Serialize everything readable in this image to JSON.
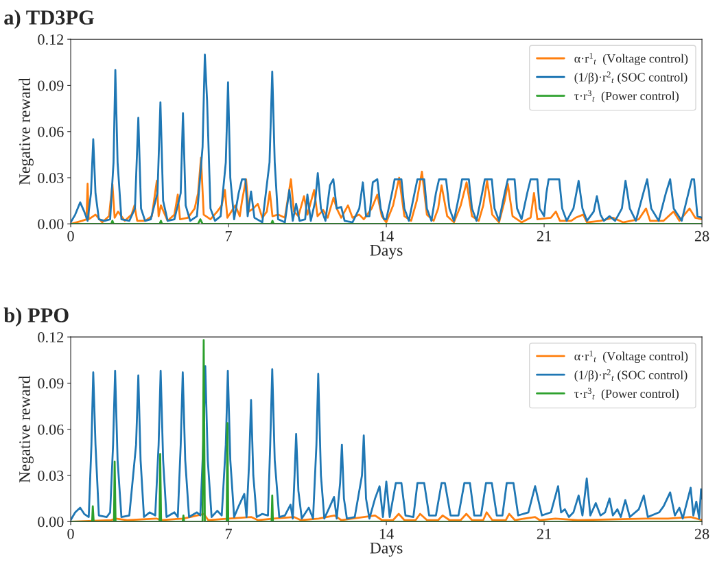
{
  "chart_data": [
    {
      "type": "line",
      "title": "a) TD3PG",
      "xlabel": "Days",
      "ylabel": "Negative reward",
      "xlim": [
        0,
        28
      ],
      "ylim": [
        0,
        0.12
      ],
      "xticks": [
        0,
        7,
        14,
        21,
        28
      ],
      "yticks": [
        {
          "value": 0,
          "label": "0.00"
        },
        {
          "value": 0.03,
          "label": "0.03"
        },
        {
          "value": 0.06,
          "label": "0.06"
        },
        {
          "value": 0.09,
          "label": "0.09"
        },
        {
          "value": 0.12,
          "label": "0.12"
        }
      ],
      "legend": "top right",
      "series": [
        {
          "name": "α·r$^{1}$$_{t}$  (Voltage control)",
          "color": "#ff7f0e",
          "x": [
            0,
            0.5,
            0.7,
            0.75,
            0.8,
            1.1,
            1.4,
            1.7,
            1.85,
            1.95,
            2.1,
            2.4,
            2.7,
            2.83,
            2.95,
            3.3,
            3.6,
            3.82,
            3.9,
            4.0,
            4.3,
            4.6,
            4.75,
            4.85,
            5.2,
            5.5,
            5.65,
            5.78,
            5.9,
            6.2,
            6.5,
            6.7,
            6.84,
            6.95,
            7.3,
            7.5,
            7.6,
            7.78,
            7.9,
            8.1,
            8.3,
            8.5,
            8.7,
            8.83,
            8.95,
            9.2,
            9.5,
            9.77,
            9.9,
            10.1,
            10.35,
            10.5,
            10.8,
            10.95,
            11.2,
            11.4,
            11.66,
            11.8,
            12.0,
            12.3,
            12.5,
            12.8,
            13.0,
            13.35,
            13.6,
            13.8,
            14.0,
            14.3,
            14.57,
            14.8,
            15.1,
            15.35,
            15.58,
            15.8,
            16.1,
            16.3,
            16.45,
            16.7,
            17.0,
            17.3,
            17.56,
            17.8,
            18.1,
            18.3,
            18.47,
            18.7,
            19.0,
            19.25,
            19.39,
            19.6,
            20.0,
            20.4,
            20.55,
            20.7,
            21.3,
            21.52,
            21.7,
            22.2,
            22.4,
            22.73,
            22.9,
            23.5,
            24.05,
            24.5,
            25.2,
            25.52,
            25.7,
            26.3,
            26.74,
            27.0,
            27.45,
            27.7,
            28
          ],
          "values": [
            0,
            0.002,
            0.003,
            0.026,
            0.003,
            0.006,
            0.001,
            0.005,
            0.026,
            0.004,
            0.008,
            0.002,
            0.006,
            0.012,
            0.002,
            0.002,
            0.005,
            0.028,
            0.005,
            0.012,
            0.002,
            0.006,
            0.019,
            0.003,
            0.004,
            0.01,
            0.02,
            0.043,
            0.006,
            0.003,
            0.008,
            0.012,
            0.022,
            0.004,
            0.012,
            0.005,
            0.015,
            0.029,
            0.008,
            0.01,
            0.013,
            0.004,
            0.008,
            0.021,
            0.005,
            0.006,
            0.004,
            0.029,
            0.008,
            0.005,
            0.018,
            0.006,
            0.022,
            0.005,
            0.009,
            0.004,
            0.017,
            0.01,
            0.004,
            0.012,
            0.004,
            0.006,
            0.003,
            0.01,
            0.019,
            0.005,
            0.001,
            0.012,
            0.03,
            0.005,
            0.002,
            0.015,
            0.034,
            0.006,
            0.002,
            0.01,
            0.025,
            0.005,
            0.001,
            0.012,
            0.027,
            0.005,
            0.002,
            0.012,
            0.028,
            0.006,
            0.001,
            0.015,
            0.026,
            0.005,
            0.001,
            0.004,
            0.02,
            0.003,
            0.004,
            0.008,
            0.002,
            0.002,
            0.004,
            0.006,
            0.001,
            0.002,
            0.004,
            0.001,
            0.003,
            0.01,
            0.002,
            0.002,
            0.008,
            0.002,
            0.01,
            0.004,
            0.003
          ]
        },
        {
          "name": "(1/β)·r$^{2}$$_{t}$ (SOC control)",
          "color": "#1f77b4",
          "x": [
            0,
            0.2,
            0.42,
            0.6,
            0.75,
            0.9,
            1.0,
            1.1,
            1.25,
            1.5,
            1.75,
            1.9,
            1.98,
            2.08,
            2.25,
            2.6,
            2.85,
            3.0,
            3.12,
            3.3,
            3.55,
            3.85,
            3.98,
            4.1,
            4.3,
            4.6,
            4.88,
            4.98,
            5.1,
            5.3,
            5.6,
            5.85,
            5.95,
            6.05,
            6.2,
            6.4,
            6.65,
            6.88,
            6.98,
            7.08,
            7.25,
            7.45,
            7.6,
            7.75,
            7.85,
            8.0,
            8.15,
            8.5,
            8.82,
            8.94,
            9.05,
            9.2,
            9.5,
            9.7,
            9.85,
            10.0,
            10.15,
            10.4,
            10.5,
            10.65,
            10.85,
            10.96,
            11.1,
            11.3,
            11.5,
            11.65,
            11.8,
            12.0,
            12.15,
            12.5,
            12.8,
            12.96,
            13.1,
            13.25,
            13.4,
            13.6,
            13.75,
            13.9,
            14.0,
            14.25,
            14.37,
            14.67,
            14.8,
            15.0,
            15.25,
            15.38,
            15.68,
            15.8,
            16.0,
            16.2,
            16.34,
            16.65,
            16.8,
            17.0,
            17.25,
            17.36,
            17.66,
            17.8,
            18.0,
            18.25,
            18.37,
            18.68,
            18.8,
            19.0,
            19.25,
            19.39,
            19.69,
            19.8,
            20.0,
            20.25,
            20.4,
            20.7,
            20.8,
            21.0,
            21.1,
            21.2,
            21.67,
            21.8,
            22.0,
            22.3,
            22.53,
            22.7,
            22.9,
            23.2,
            23.34,
            23.5,
            23.65,
            23.9,
            24.15,
            24.45,
            24.61,
            24.8,
            25.07,
            25.4,
            25.57,
            25.75,
            26.08,
            26.4,
            26.59,
            26.75,
            27.1,
            27.4,
            27.55,
            27.65,
            27.8,
            28
          ],
          "values": [
            0.001,
            0.006,
            0.014,
            0.008,
            0.002,
            0.02,
            0.055,
            0.02,
            0.003,
            0.002,
            0.003,
            0.04,
            0.1,
            0.04,
            0.003,
            0.002,
            0.01,
            0.069,
            0.01,
            0.002,
            0.003,
            0.02,
            0.079,
            0.015,
            0.002,
            0.003,
            0.02,
            0.072,
            0.012,
            0.002,
            0.005,
            0.05,
            0.11,
            0.08,
            0.01,
            0.002,
            0.005,
            0.04,
            0.092,
            0.03,
            0.003,
            0.02,
            0.029,
            0.029,
            0.005,
            0.021,
            0.004,
            0.001,
            0.04,
            0.099,
            0.04,
            0.003,
            0.001,
            0.022,
            0.002,
            0.013,
            0.002,
            0.003,
            0.019,
            0.002,
            0.015,
            0.033,
            0.01,
            0.002,
            0.025,
            0.029,
            0.01,
            0.011,
            0.002,
            0.001,
            0.01,
            0.027,
            0.005,
            0.005,
            0.027,
            0.029,
            0.01,
            0.003,
            0.003,
            0.02,
            0.029,
            0.029,
            0.01,
            0.002,
            0.02,
            0.029,
            0.029,
            0.01,
            0.002,
            0.02,
            0.029,
            0.029,
            0.01,
            0.002,
            0.02,
            0.029,
            0.029,
            0.01,
            0.002,
            0.02,
            0.029,
            0.029,
            0.01,
            0.002,
            0.02,
            0.029,
            0.029,
            0.01,
            0.003,
            0.02,
            0.029,
            0.029,
            0.01,
            0.005,
            0.02,
            0.029,
            0.029,
            0.01,
            0.002,
            0.01,
            0.028,
            0.01,
            0.002,
            0.008,
            0.018,
            0.006,
            0.002,
            0.005,
            0.002,
            0.01,
            0.028,
            0.01,
            0.002,
            0.02,
            0.029,
            0.01,
            0.002,
            0.02,
            0.029,
            0.01,
            0.002,
            0.02,
            0.029,
            0.029,
            0.005,
            0.004
          ]
        },
        {
          "name": "τ·r$^{3}$$_{t}$  (Power control)",
          "color": "#2ca02c",
          "x": [
            0,
            1.8,
            1.85,
            1.9,
            3.95,
            4.0,
            4.05,
            5.65,
            5.75,
            5.85,
            8.9,
            8.95,
            9.0,
            28
          ],
          "values": [
            0,
            0,
            0.002,
            0,
            0,
            0.002,
            0,
            0,
            0.003,
            0,
            0,
            0.002,
            0,
            0
          ]
        }
      ]
    },
    {
      "type": "line",
      "title": "b) PPO",
      "xlabel": "Days",
      "ylabel": "Negative reward",
      "xlim": [
        0,
        28
      ],
      "ylim": [
        0,
        0.12
      ],
      "xticks": [
        0,
        7,
        14,
        21,
        28
      ],
      "yticks": [
        {
          "value": 0,
          "label": "0.00"
        },
        {
          "value": 0.03,
          "label": "0.03"
        },
        {
          "value": 0.06,
          "label": "0.06"
        },
        {
          "value": 0.09,
          "label": "0.09"
        },
        {
          "value": 0.12,
          "label": "0.12"
        }
      ],
      "legend": "top right",
      "series": [
        {
          "name": "α·r$^{1}$$_{t}$  (Voltage control)",
          "color": "#ff7f0e",
          "x": [
            0,
            1.8,
            2.0,
            2.5,
            3.8,
            4.0,
            5.0,
            5.9,
            6.1,
            7.0,
            8.0,
            8.3,
            9.0,
            9.9,
            10.2,
            11.0,
            11.7,
            12.0,
            13.5,
            13.8,
            14.3,
            14.55,
            14.8,
            15.3,
            15.5,
            15.8,
            16.3,
            16.5,
            16.8,
            17.3,
            17.55,
            17.8,
            18.3,
            18.45,
            18.7,
            19.3,
            19.45,
            19.7,
            20.6,
            20.8,
            21.5,
            22.5,
            25.5,
            26.5,
            27.5,
            28
          ],
          "values": [
            0,
            0.001,
            0.002,
            0.001,
            0.002,
            0.001,
            0.002,
            0.005,
            0.001,
            0.002,
            0.003,
            0.001,
            0.002,
            0.003,
            0.001,
            0.002,
            0.004,
            0.001,
            0.004,
            0.001,
            0.001,
            0.005,
            0.001,
            0.001,
            0.005,
            0.001,
            0.001,
            0.004,
            0.001,
            0.001,
            0.005,
            0.001,
            0.001,
            0.006,
            0.001,
            0.001,
            0.005,
            0.001,
            0.003,
            0.001,
            0.002,
            0.001,
            0.002,
            0.002,
            0.003,
            0.001
          ]
        },
        {
          "name": "(1/β)·r$^{2}$$_{t}$ (SOC control)",
          "color": "#1f77b4",
          "x": [
            0,
            0.2,
            0.42,
            0.6,
            0.8,
            0.92,
            1.0,
            1.1,
            1.25,
            1.6,
            1.75,
            1.88,
            1.97,
            2.08,
            2.25,
            2.6,
            2.9,
            3.0,
            3.1,
            3.25,
            3.5,
            3.75,
            3.9,
            3.99,
            4.1,
            4.25,
            4.6,
            4.75,
            4.88,
            4.97,
            5.08,
            5.25,
            5.6,
            5.75,
            5.88,
            5.97,
            6.08,
            6.25,
            6.5,
            6.7,
            6.88,
            6.97,
            7.08,
            7.25,
            7.45,
            7.7,
            7.8,
            7.92,
            8.0,
            8.1,
            8.25,
            8.5,
            8.75,
            8.85,
            8.94,
            9.05,
            9.25,
            9.5,
            9.75,
            9.85,
            9.93,
            10.0,
            10.1,
            10.25,
            10.56,
            10.75,
            10.9,
            10.98,
            11.1,
            11.25,
            11.5,
            11.68,
            11.8,
            11.95,
            12.03,
            12.12,
            12.25,
            12.6,
            12.92,
            13.0,
            13.1,
            13.25,
            13.5,
            13.7,
            13.85,
            14.0,
            14.15,
            14.42,
            14.67,
            14.85,
            15.2,
            15.38,
            15.68,
            15.9,
            16.2,
            16.45,
            16.6,
            16.85,
            17.2,
            17.46,
            17.71,
            17.9,
            18.2,
            18.42,
            18.68,
            18.9,
            19.15,
            19.34,
            19.64,
            19.85,
            20.3,
            20.6,
            20.9,
            21.3,
            21.62,
            21.75,
            21.92,
            22.1,
            22.3,
            22.53,
            22.7,
            22.89,
            23.05,
            23.29,
            23.5,
            23.7,
            23.9,
            24.05,
            24.25,
            24.4,
            24.6,
            24.8,
            25.2,
            25.42,
            25.6,
            26.1,
            26.3,
            26.59,
            26.8,
            27.0,
            27.15,
            27.5,
            27.62,
            27.75,
            27.88,
            27.96,
            28
          ],
          "values": [
            0.001,
            0.006,
            0.009,
            0.005,
            0.003,
            0.05,
            0.097,
            0.05,
            0.004,
            0.003,
            0.006,
            0.05,
            0.098,
            0.04,
            0.003,
            0.004,
            0.05,
            0.095,
            0.04,
            0.003,
            0.006,
            0.004,
            0.05,
            0.098,
            0.04,
            0.003,
            0.006,
            0.003,
            0.05,
            0.097,
            0.04,
            0.003,
            0.006,
            0.004,
            0.05,
            0.101,
            0.04,
            0.003,
            0.007,
            0.004,
            0.05,
            0.098,
            0.04,
            0.003,
            0.01,
            0.018,
            0.003,
            0.04,
            0.079,
            0.03,
            0.003,
            0.005,
            0.004,
            0.05,
            0.099,
            0.04,
            0.003,
            0.004,
            0.011,
            0.002,
            0.03,
            0.057,
            0.02,
            0.002,
            0.009,
            0.002,
            0.05,
            0.096,
            0.03,
            0.002,
            0.01,
            0.016,
            0.002,
            0.025,
            0.05,
            0.015,
            0.002,
            0.003,
            0.03,
            0.056,
            0.015,
            0.002,
            0.015,
            0.023,
            0.003,
            0.026,
            0.003,
            0.025,
            0.025,
            0.004,
            0.003,
            0.025,
            0.025,
            0.004,
            0.004,
            0.025,
            0.025,
            0.004,
            0.004,
            0.025,
            0.025,
            0.004,
            0.004,
            0.025,
            0.025,
            0.004,
            0.004,
            0.025,
            0.025,
            0.004,
            0.006,
            0.023,
            0.004,
            0.006,
            0.023,
            0.006,
            0.008,
            0.003,
            0.006,
            0.017,
            0.004,
            0.028,
            0.004,
            0.012,
            0.004,
            0.006,
            0.015,
            0.004,
            0.008,
            0.003,
            0.014,
            0.003,
            0.008,
            0.017,
            0.003,
            0.006,
            0.01,
            0.019,
            0.004,
            0.009,
            0.002,
            0.022,
            0.004,
            0.013,
            0.002,
            0.021,
            0.015
          ]
        },
        {
          "name": "τ·r$^{3}$$_{t}$  (Power control)",
          "color": "#2ca02c",
          "x": [
            0,
            0.95,
            0.98,
            1.02,
            1.92,
            1.95,
            1.99,
            3.94,
            3.97,
            4.01,
            4.97,
            5.0,
            5.03,
            5.85,
            5.9,
            5.95,
            6.92,
            6.95,
            6.99,
            8.91,
            8.94,
            8.97,
            28
          ],
          "values": [
            0,
            0,
            0.01,
            0,
            0,
            0.039,
            0,
            0,
            0.044,
            0,
            0,
            0.004,
            0,
            0,
            0.118,
            0,
            0,
            0.064,
            0,
            0,
            0.017,
            0,
            0
          ]
        }
      ]
    }
  ]
}
